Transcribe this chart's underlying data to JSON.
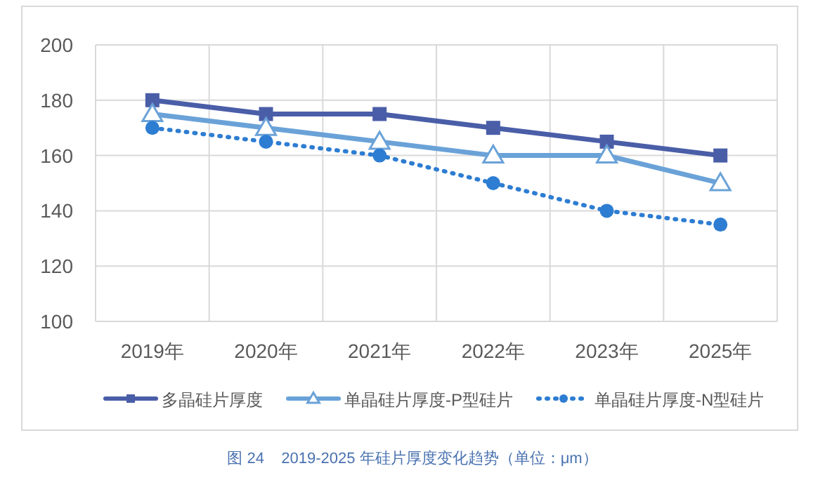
{
  "chart_data": {
    "type": "line",
    "categories": [
      "2019年",
      "2020年",
      "2021年",
      "2022年",
      "2023年",
      "2025年"
    ],
    "series": [
      {
        "name": "多晶硅片厚度",
        "color": "#4a5ea8",
        "marker": "square",
        "line_style": "solid",
        "values": [
          180,
          175,
          175,
          170,
          165,
          160
        ]
      },
      {
        "name": "单晶硅片厚度-P型硅片",
        "color": "#6aa2d8",
        "marker": "triangle",
        "line_style": "solid",
        "values": [
          175,
          170,
          165,
          160,
          160,
          150
        ]
      },
      {
        "name": "单晶硅片厚度-N型硅片",
        "color": "#2d7dd2",
        "marker": "circle",
        "line_style": "dotted",
        "values": [
          170,
          165,
          160,
          150,
          140,
          135
        ]
      }
    ],
    "ylim": [
      100,
      200
    ],
    "yticks": [
      100,
      120,
      140,
      160,
      180,
      200
    ],
    "grid": true,
    "legend": "bottom",
    "annotations": [
      "图 24    2019-2025 年硅片厚度变化趋势（单位：μm）"
    ]
  }
}
